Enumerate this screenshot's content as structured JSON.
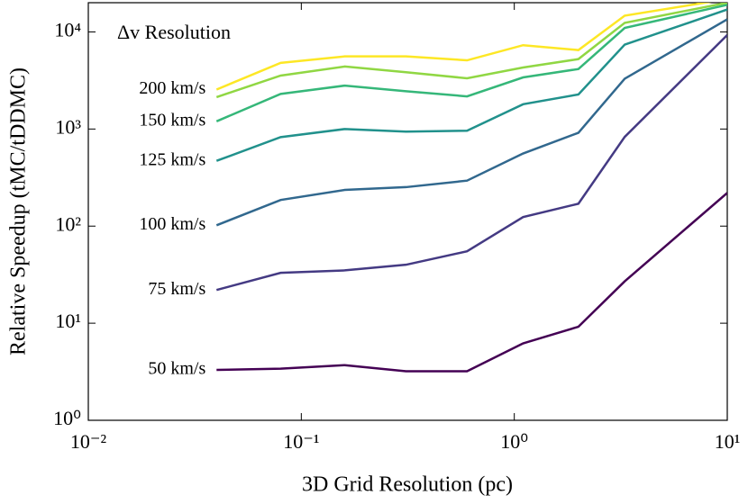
{
  "chart_data": {
    "type": "line",
    "xlabel": "3D Grid Resolution (pc)",
    "ylabel": "Relative Speedup (tMC/tDDMC)",
    "legend_title": "Δv Resolution",
    "log_x": true,
    "log_y": true,
    "x": [
      0.04,
      0.08,
      0.16,
      0.31,
      0.6,
      1.1,
      2,
      3.3,
      10
    ],
    "xlim": [
      0.01,
      10
    ],
    "xticks": [
      {
        "value": 0.01,
        "label": "10⁻²"
      },
      {
        "value": 0.1,
        "label": "10⁻¹"
      },
      {
        "value": 1,
        "label": "10⁰"
      },
      {
        "value": 10,
        "label": "10¹"
      }
    ],
    "ylim": [
      1,
      20000
    ],
    "yticks": [
      {
        "value": 1,
        "label": "10⁰"
      },
      {
        "value": 10,
        "label": "10¹"
      },
      {
        "value": 100,
        "label": "10²"
      },
      {
        "value": 1000,
        "label": "10³"
      },
      {
        "value": 10000,
        "label": "10⁴"
      }
    ],
    "series": [
      {
        "name": "50 km/s",
        "color": "#440154",
        "values": [
          3.3,
          3.4,
          3.7,
          3.2,
          3.2,
          6.2,
          9.2,
          27,
          220
        ]
      },
      {
        "name": "75 km/s",
        "color": "#443a83",
        "values": [
          22,
          33,
          35,
          40,
          55,
          124,
          170,
          830,
          9300
        ]
      },
      {
        "name": "100 km/s",
        "color": "#31688e",
        "values": [
          102,
          186,
          236,
          252,
          294,
          560,
          915,
          3300,
          13500
        ]
      },
      {
        "name": "125 km/s",
        "color": "#21918c",
        "values": [
          470,
          825,
          1000,
          940,
          960,
          1800,
          2270,
          7400,
          17000
        ]
      },
      {
        "name": "150 km/s",
        "color": "#35b779",
        "values": [
          1200,
          2300,
          2800,
          2450,
          2170,
          3400,
          4150,
          11000,
          19000
        ]
      },
      {
        "color": "#90d743",
        "values": [
          2130,
          3550,
          4400,
          3850,
          3330,
          4300,
          5250,
          12400,
          20000
        ]
      },
      {
        "name": "200 km/s",
        "color": "#fde725",
        "values": [
          2550,
          4800,
          5600,
          5600,
          5100,
          7300,
          6500,
          14700,
          21800
        ]
      }
    ]
  }
}
